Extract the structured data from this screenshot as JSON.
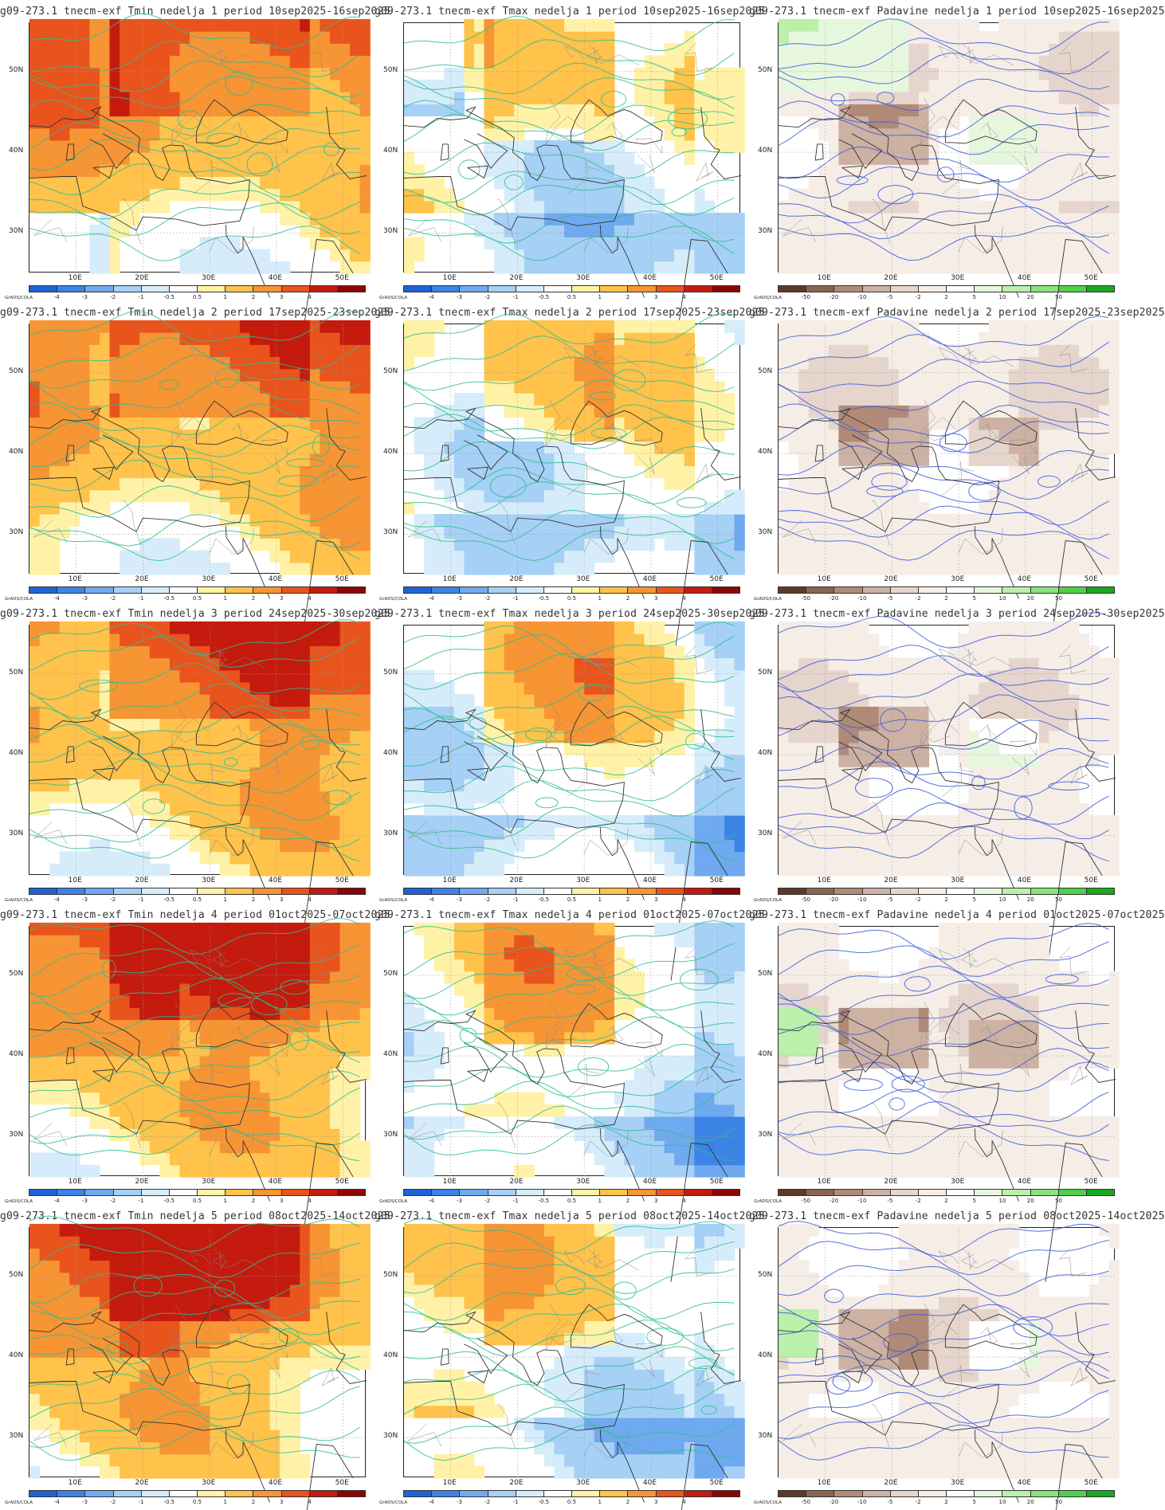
{
  "credit": "GrADS/COLA",
  "axes": {
    "lat_labels": [
      "50N",
      "40N",
      "30N"
    ],
    "lon_labels": [
      "10E",
      "20E",
      "30E",
      "40E",
      "50E"
    ]
  },
  "colorbars": {
    "temp": {
      "ticks": [
        "-4",
        "-3",
        "-2",
        "-1",
        "-0.5",
        "0.5",
        "1",
        "2",
        "3",
        "4"
      ],
      "colors": [
        "#1f62d6",
        "#3c83e6",
        "#6fa9ef",
        "#a6d0f6",
        "#d6ecfb",
        "#ffffff",
        "#fff2a6",
        "#ffc24a",
        "#f79433",
        "#e9541c",
        "#c41b0e",
        "#8c0505"
      ]
    },
    "precip": {
      "ticks": [
        "-50",
        "-20",
        "-10",
        "-5",
        "-2",
        "2",
        "5",
        "10",
        "20",
        "50"
      ],
      "colors": [
        "#5c3a2a",
        "#8a6552",
        "#b08a77",
        "#cdb1a3",
        "#e6d5cc",
        "#f6ede7",
        "#ffffff",
        "#e7f7de",
        "#baf0aa",
        "#87e37a",
        "#4fcf4b",
        "#19a81e"
      ]
    }
  },
  "panels": [
    {
      "title": "g09-273.1 tnecm-exf Tmin nedelja 1 period 10sep2025-16sep2025",
      "variable": "Tmin",
      "week": 1
    },
    {
      "title": "g09-273.1 tnecm-exf Tmax nedelja 1 period 10sep2025-16sep2025",
      "variable": "Tmax",
      "week": 1
    },
    {
      "title": "g09-273.1 tnecm-exf Padavine nedelja 1 period 10sep2025-16sep2025",
      "variable": "Padavine",
      "week": 1
    },
    {
      "title": "g09-273.1 tnecm-exf Tmin nedelja 2 period 17sep2025-23sep2025",
      "variable": "Tmin",
      "week": 2
    },
    {
      "title": "g09-273.1 tnecm-exf Tmax nedelja 2 period 17sep2025-23sep2025",
      "variable": "Tmax",
      "week": 2
    },
    {
      "title": "g09-273.1 tnecm-exf Padavine nedelja 2 period 17sep2025-23sep2025",
      "variable": "Padavine",
      "week": 2
    },
    {
      "title": "g09-273.1 tnecm-exf Tmin nedelja 3 period 24sep2025-30sep2025",
      "variable": "Tmin",
      "week": 3
    },
    {
      "title": "g09-273.1 tnecm-exf Tmax nedelja 3 period 24sep2025-30sep2025",
      "variable": "Tmax",
      "week": 3
    },
    {
      "title": "g09-273.1 tnecm-exf Padavine nedelja 3 period 24sep2025-30sep2025",
      "variable": "Padavine",
      "week": 3
    },
    {
      "title": "g09-273.1 tnecm-exf Tmin nedelja 4 period 01oct2025-07oct2025",
      "variable": "Tmin",
      "week": 4
    },
    {
      "title": "g09-273.1 tnecm-exf Tmax nedelja 4 period 01oct2025-07oct2025",
      "variable": "Tmax",
      "week": 4
    },
    {
      "title": "g09-273.1 tnecm-exf Padavine nedelja 4 period 01oct2025-07oct2025",
      "variable": "Padavine",
      "week": 4
    },
    {
      "title": "g09-273.1 tnecm-exf Tmin nedelja 5 period 08oct2025-14oct2025",
      "variable": "Tmin",
      "week": 5
    },
    {
      "title": "g09-273.1 tnecm-exf Tmax nedelja 5 period 08oct2025-14oct2025",
      "variable": "Tmax",
      "week": 5
    },
    {
      "title": "g09-273.1 tnecm-exf Padavine nedelja 5 period 08oct2025-14oct2025",
      "variable": "Padavine",
      "week": 5
    }
  ]
}
